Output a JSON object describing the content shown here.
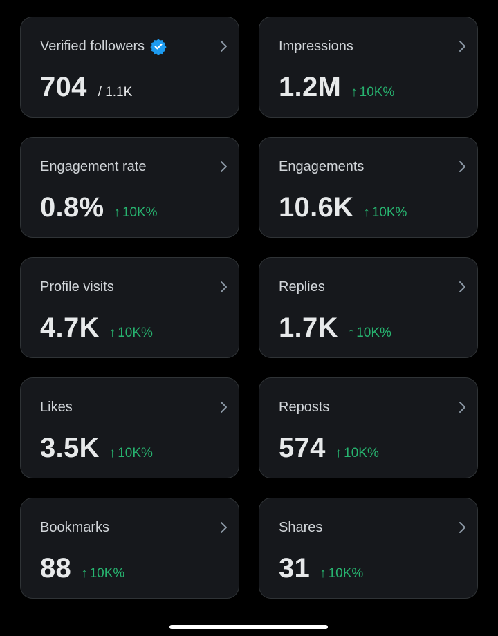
{
  "colors": {
    "background": "#000000",
    "card": "#16181c",
    "border": "#2f3336",
    "positive": "#27b36f",
    "verified_badge": "#1d9bf0"
  },
  "cards": [
    {
      "title": "Verified followers",
      "value": "704",
      "sub": "/ 1.1K",
      "change": null,
      "badge": "verified-badge-icon"
    },
    {
      "title": "Impressions",
      "value": "1.2M",
      "sub": null,
      "change": "10K%"
    },
    {
      "title": "Engagement rate",
      "value": "0.8%",
      "sub": null,
      "change": "10K%"
    },
    {
      "title": "Engagements",
      "value": "10.6K",
      "sub": null,
      "change": "10K%"
    },
    {
      "title": "Profile visits",
      "value": "4.7K",
      "sub": null,
      "change": "10K%"
    },
    {
      "title": "Replies",
      "value": "1.7K",
      "sub": null,
      "change": "10K%"
    },
    {
      "title": "Likes",
      "value": "3.5K",
      "sub": null,
      "change": "10K%"
    },
    {
      "title": "Reposts",
      "value": "574",
      "sub": null,
      "change": "10K%"
    },
    {
      "title": "Bookmarks",
      "value": "88",
      "sub": null,
      "change": "10K%"
    },
    {
      "title": "Shares",
      "value": "31",
      "sub": null,
      "change": "10K%"
    }
  ],
  "icons": {
    "trend": "arrow-up-icon",
    "navigate": "chevron-right-icon"
  }
}
